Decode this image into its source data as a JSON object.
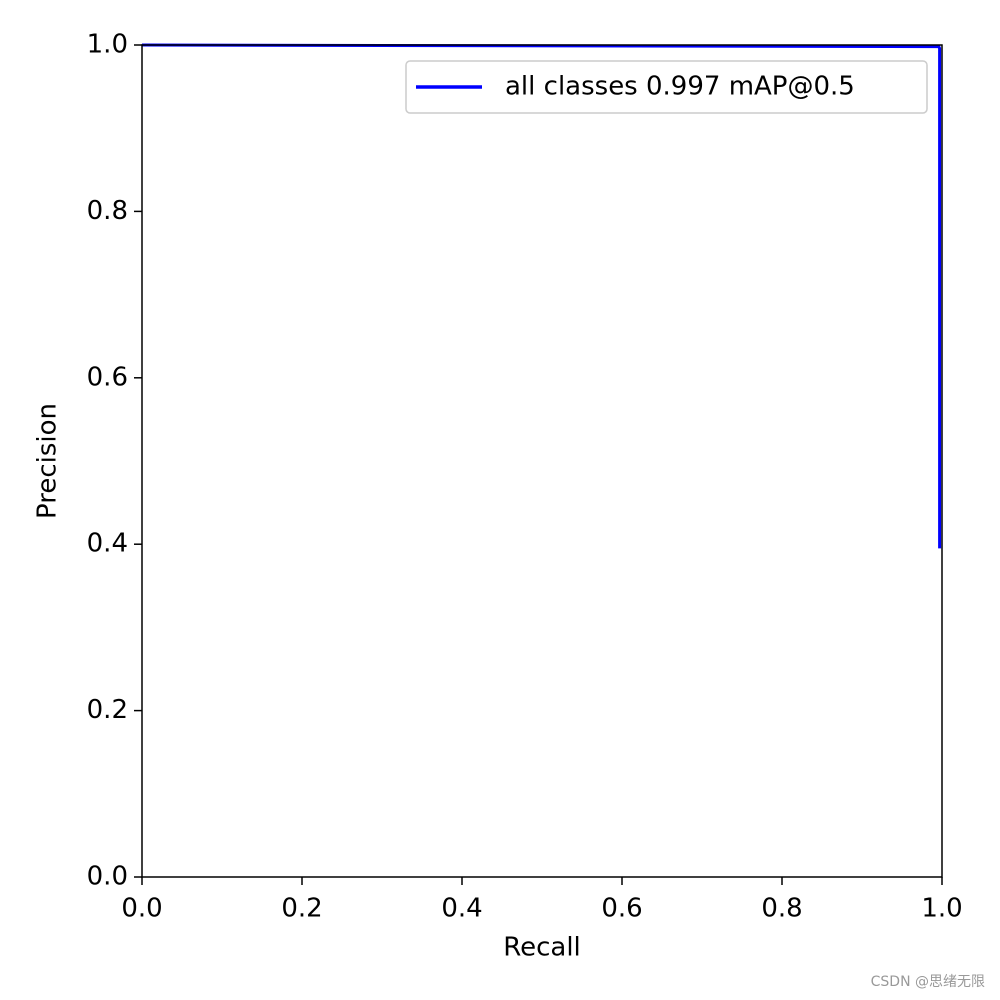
{
  "chart_data": {
    "type": "line",
    "xlabel": "Recall",
    "ylabel": "Precision",
    "x": [
      0,
      0.996,
      0.997,
      0.997
    ],
    "series": [
      {
        "name": "all classes 0.997 mAP@0.5",
        "color": "#0000ff",
        "values": [
          1.0,
          0.998,
          0.996,
          0.395
        ]
      }
    ],
    "xlim": [
      0,
      1
    ],
    "ylim": [
      0,
      1
    ],
    "xticks": [
      {
        "value": 0,
        "label": "0.0"
      },
      {
        "value": 0.2,
        "label": "0.2"
      },
      {
        "value": 0.4,
        "label": "0.4"
      },
      {
        "value": 0.6,
        "label": "0.6"
      },
      {
        "value": 0.8,
        "label": "0.8"
      },
      {
        "value": 1,
        "label": "1.0"
      }
    ],
    "yticks": [
      {
        "value": 0,
        "label": "0.0"
      },
      {
        "value": 0.2,
        "label": "0.2"
      },
      {
        "value": 0.4,
        "label": "0.4"
      },
      {
        "value": 0.6,
        "label": "0.6"
      },
      {
        "value": 0.8,
        "label": "0.8"
      },
      {
        "value": 1,
        "label": "1.0"
      }
    ],
    "legend": "upper right",
    "grid": false,
    "watermark": "CSDN @思绪无限"
  }
}
